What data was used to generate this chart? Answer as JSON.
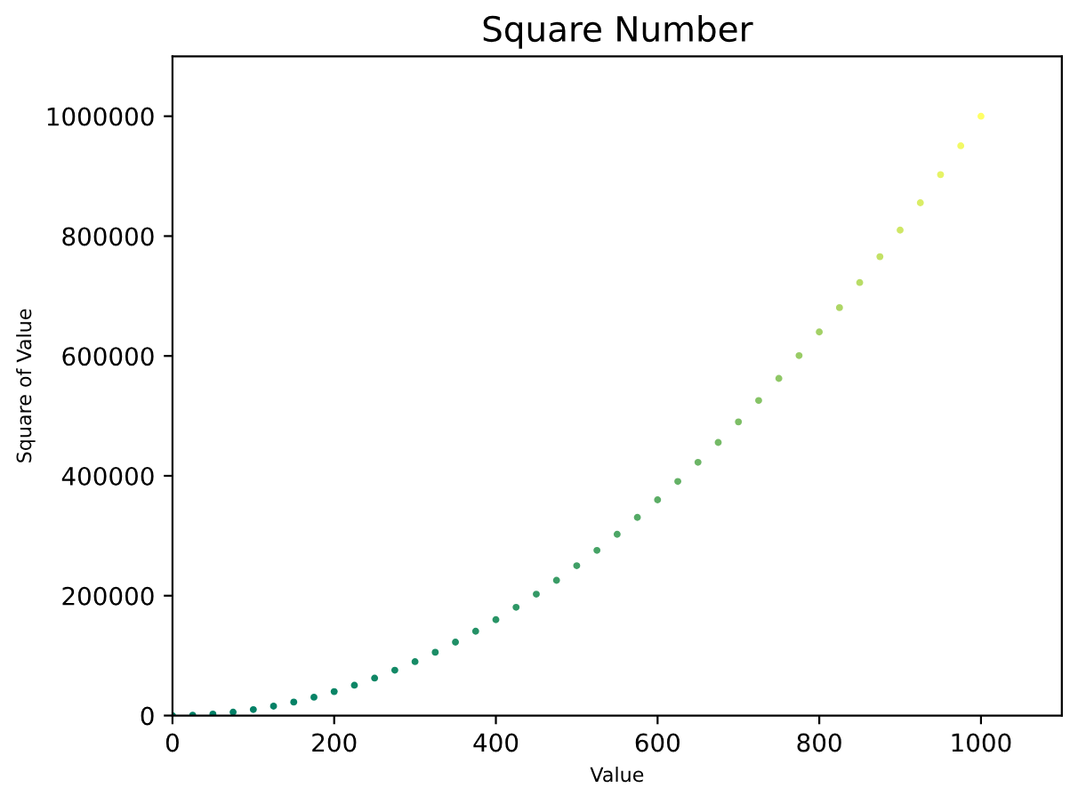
{
  "chart_data": {
    "type": "scatter",
    "title": "Square Number",
    "xlabel": "Value",
    "ylabel": "Square of Value",
    "x": [
      0,
      25,
      50,
      75,
      100,
      125,
      150,
      175,
      200,
      225,
      250,
      275,
      300,
      325,
      350,
      375,
      400,
      425,
      450,
      475,
      500,
      525,
      550,
      575,
      600,
      625,
      650,
      675,
      700,
      725,
      750,
      775,
      800,
      825,
      850,
      875,
      900,
      925,
      950,
      975,
      1000
    ],
    "values": [
      0,
      625,
      2500,
      5625,
      10000,
      15625,
      22500,
      30625,
      40000,
      50625,
      62500,
      75625,
      90000,
      105625,
      122500,
      140625,
      160000,
      180625,
      202500,
      225625,
      250000,
      275625,
      302500,
      330625,
      360000,
      390625,
      422500,
      455625,
      490000,
      525625,
      562500,
      600625,
      640000,
      680625,
      722500,
      765625,
      810000,
      855625,
      902500,
      950625,
      1000000
    ],
    "colors": [
      "#008066",
      "#008066",
      "#018066",
      "#018066",
      "#038166",
      "#048166",
      "#068266",
      "#088366",
      "#0a8566",
      "#0d8666",
      "#108766",
      "#138966",
      "#178b66",
      "#1b8d66",
      "#1f8f66",
      "#249166",
      "#299466",
      "#2e9766",
      "#349966",
      "#3a9c66",
      "#409f66",
      "#46a366",
      "#4da666",
      "#54aa66",
      "#5cad66",
      "#64b166",
      "#6cb566",
      "#74ba66",
      "#7dbe66",
      "#86c366",
      "#8fc766",
      "#99cc66",
      "#a3d166",
      "#aed666",
      "#b8dc66",
      "#c3e166",
      "#cfe766",
      "#daed66",
      "#e6f366",
      "#f2f966",
      "#ffff66"
    ],
    "marker": "circle",
    "xlim": [
      0,
      1100
    ],
    "xticks": [
      0,
      200,
      400,
      600,
      800,
      1000
    ],
    "ylim": [
      0,
      1100000
    ],
    "yticks": [
      0,
      200000,
      400000,
      600000,
      800000,
      1000000
    ],
    "grid": false,
    "legend": false
  }
}
